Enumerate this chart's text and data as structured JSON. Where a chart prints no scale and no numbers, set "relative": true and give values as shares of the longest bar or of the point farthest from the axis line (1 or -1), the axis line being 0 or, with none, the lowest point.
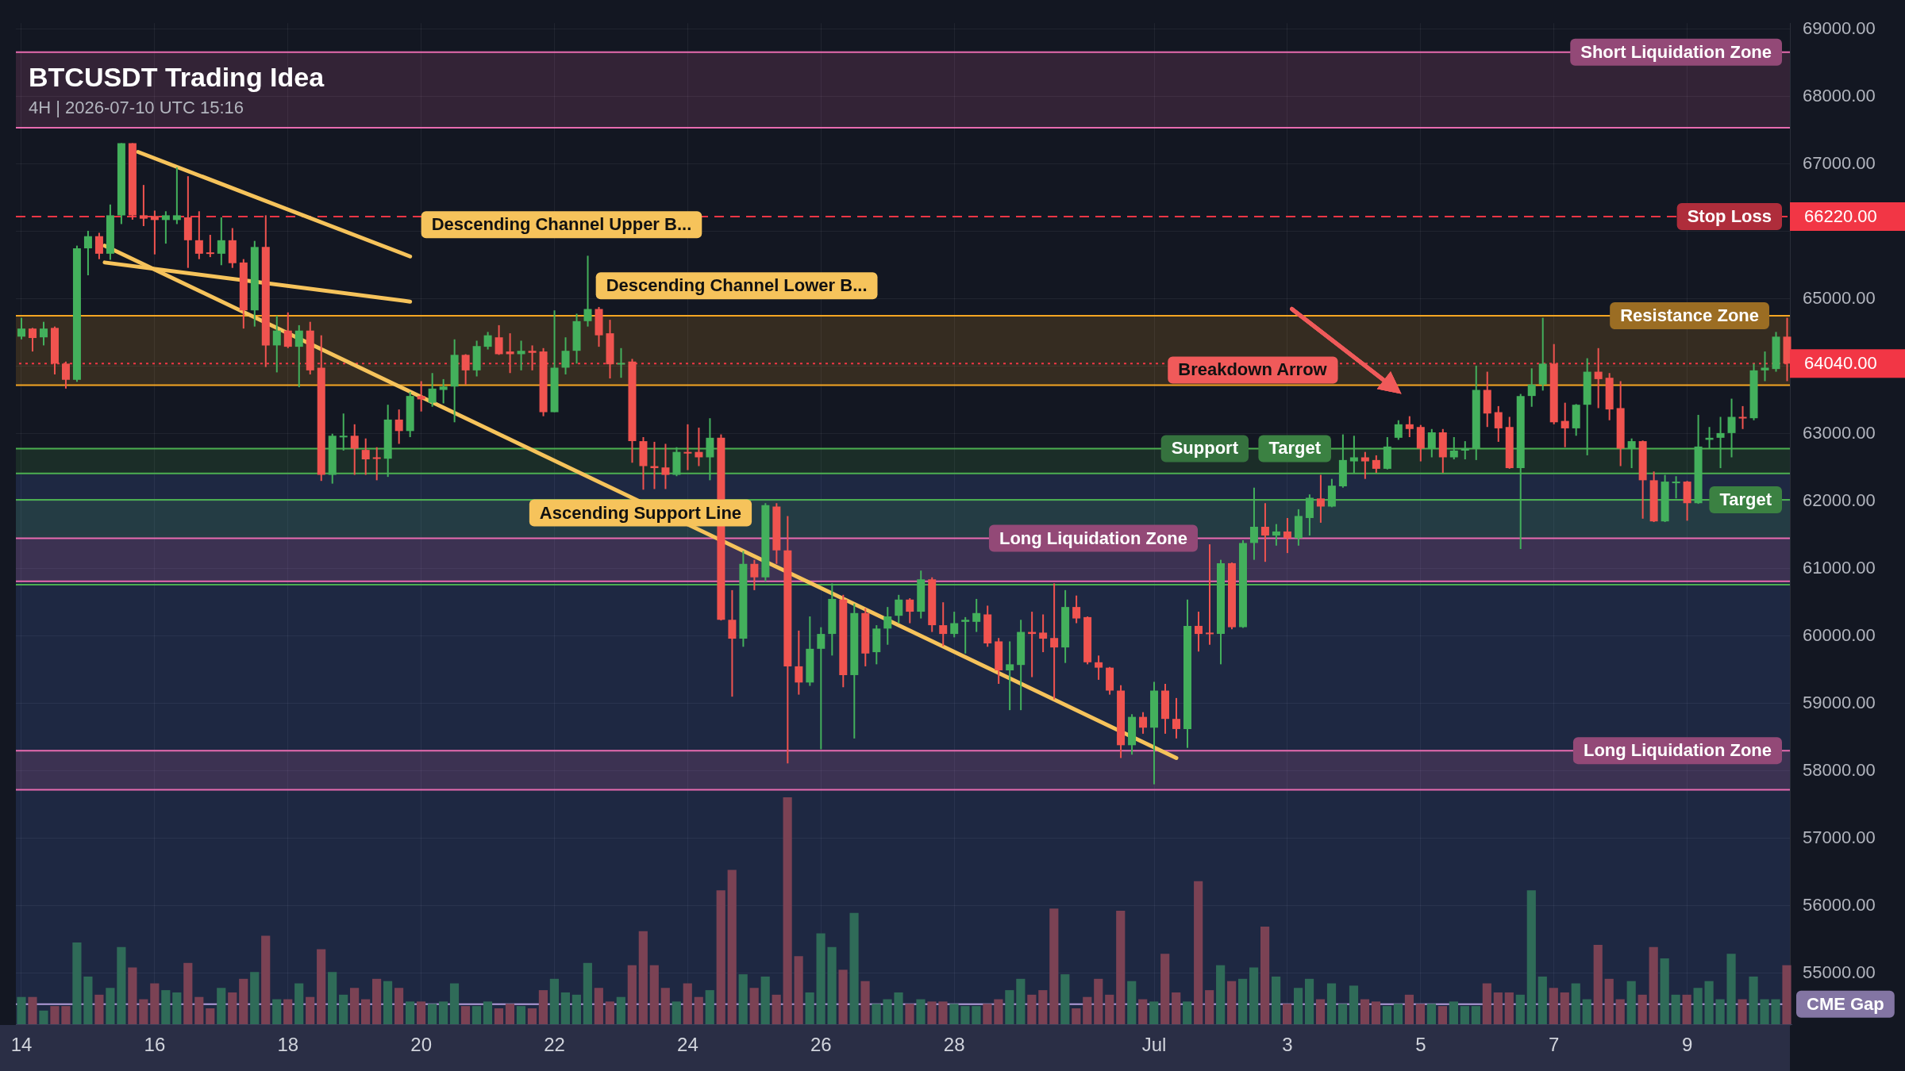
{
  "chart_data": [
    {
      "type": "candlestick",
      "title": "BTCUSDT Trading Idea",
      "subtitle": "4H | 2026-07-10 UTC 15:16",
      "x": [
        "2026-06-14T00:00",
        "2026-06-14T04:00",
        "2026-06-14T08:00",
        "2026-06-14T12:00",
        "2026-06-14T16:00",
        "2026-06-14T20:00",
        "2026-06-15T00:00",
        "2026-06-15T04:00",
        "2026-06-15T08:00",
        "2026-06-15T12:00",
        "2026-06-15T16:00",
        "2026-06-15T20:00",
        "2026-06-16T00:00",
        "2026-06-16T04:00",
        "2026-06-16T08:00",
        "2026-06-16T12:00",
        "2026-06-16T16:00",
        "2026-06-16T20:00",
        "2026-06-17T00:00",
        "2026-06-17T04:00",
        "2026-06-17T08:00",
        "2026-06-17T12:00",
        "2026-06-17T16:00",
        "2026-06-17T20:00",
        "2026-06-18T00:00",
        "2026-06-18T04:00",
        "2026-06-18T08:00",
        "2026-06-18T12:00",
        "2026-06-18T16:00",
        "2026-06-18T20:00",
        "2026-06-19T00:00",
        "2026-06-19T04:00",
        "2026-06-19T08:00",
        "2026-06-19T12:00",
        "2026-06-19T16:00",
        "2026-06-19T20:00",
        "2026-06-20T00:00",
        "2026-06-20T04:00",
        "2026-06-20T08:00",
        "2026-06-20T12:00",
        "2026-06-20T16:00",
        "2026-06-20T20:00",
        "2026-06-21T00:00",
        "2026-06-21T04:00",
        "2026-06-21T08:00",
        "2026-06-21T12:00",
        "2026-06-21T16:00",
        "2026-06-21T20:00",
        "2026-06-22T00:00",
        "2026-06-22T04:00",
        "2026-06-22T08:00",
        "2026-06-22T12:00",
        "2026-06-22T16:00",
        "2026-06-22T20:00",
        "2026-06-23T00:00",
        "2026-06-23T04:00",
        "2026-06-23T08:00",
        "2026-06-23T12:00",
        "2026-06-23T16:00",
        "2026-06-23T20:00",
        "2026-06-24T00:00",
        "2026-06-24T04:00",
        "2026-06-24T08:00",
        "2026-06-24T12:00",
        "2026-06-24T16:00",
        "2026-06-24T20:00",
        "2026-06-25T00:00",
        "2026-06-25T04:00",
        "2026-06-25T08:00",
        "2026-06-25T12:00",
        "2026-06-25T16:00",
        "2026-06-25T20:00",
        "2026-06-26T00:00",
        "2026-06-26T04:00",
        "2026-06-26T08:00",
        "2026-06-26T12:00",
        "2026-06-26T16:00",
        "2026-06-26T20:00",
        "2026-06-27T00:00",
        "2026-06-27T04:00",
        "2026-06-27T08:00",
        "2026-06-27T12:00",
        "2026-06-27T16:00",
        "2026-06-27T20:00",
        "2026-06-28T00:00",
        "2026-06-28T04:00",
        "2026-06-28T08:00",
        "2026-06-28T12:00",
        "2026-06-28T16:00",
        "2026-06-28T20:00",
        "2026-06-29T00:00",
        "2026-06-29T04:00",
        "2026-06-29T08:00",
        "2026-06-29T12:00",
        "2026-06-29T16:00",
        "2026-06-29T20:00",
        "2026-06-30T00:00",
        "2026-06-30T04:00",
        "2026-06-30T08:00",
        "2026-06-30T12:00",
        "2026-06-30T16:00",
        "2026-06-30T20:00",
        "2026-07-01T00:00",
        "2026-07-01T04:00",
        "2026-07-01T08:00",
        "2026-07-01T12:00",
        "2026-07-01T16:00",
        "2026-07-01T20:00",
        "2026-07-02T00:00",
        "2026-07-02T04:00",
        "2026-07-02T08:00",
        "2026-07-02T12:00",
        "2026-07-02T16:00",
        "2026-07-02T20:00",
        "2026-07-03T00:00",
        "2026-07-03T04:00",
        "2026-07-03T08:00",
        "2026-07-03T12:00",
        "2026-07-03T16:00",
        "2026-07-03T20:00",
        "2026-07-04T00:00",
        "2026-07-04T04:00",
        "2026-07-04T08:00",
        "2026-07-04T12:00",
        "2026-07-04T16:00",
        "2026-07-04T20:00",
        "2026-07-05T00:00",
        "2026-07-05T04:00",
        "2026-07-05T08:00",
        "2026-07-05T12:00",
        "2026-07-05T16:00",
        "2026-07-05T20:00",
        "2026-07-06T00:00",
        "2026-07-06T04:00",
        "2026-07-06T08:00",
        "2026-07-06T12:00",
        "2026-07-06T16:00",
        "2026-07-06T20:00",
        "2026-07-07T00:00",
        "2026-07-07T04:00",
        "2026-07-07T08:00",
        "2026-07-07T12:00",
        "2026-07-07T16:00",
        "2026-07-07T20:00",
        "2026-07-08T00:00",
        "2026-07-08T04:00",
        "2026-07-08T08:00",
        "2026-07-08T12:00",
        "2026-07-08T16:00",
        "2026-07-08T20:00",
        "2026-07-09T00:00",
        "2026-07-09T04:00",
        "2026-07-09T08:00",
        "2026-07-09T12:00",
        "2026-07-09T16:00",
        "2026-07-09T20:00",
        "2026-07-10T00:00",
        "2026-07-10T04:00",
        "2026-07-10T08:00",
        "2026-07-10T12:00"
      ],
      "ohlc": [
        [
          64440,
          64720,
          64400,
          64560
        ],
        [
          64560,
          64570,
          64220,
          64420
        ],
        [
          64430,
          64660,
          64310,
          64560
        ],
        [
          64570,
          64590,
          63880,
          64040
        ],
        [
          64040,
          64070,
          63670,
          63800
        ],
        [
          63800,
          65790,
          63770,
          65750
        ],
        [
          65750,
          66010,
          65350,
          65930
        ],
        [
          65930,
          65980,
          65590,
          65670
        ],
        [
          65670,
          66400,
          65580,
          66240
        ],
        [
          66240,
          67310,
          66110,
          67310
        ],
        [
          67310,
          67310,
          66175,
          66240
        ],
        [
          66240,
          66690,
          66080,
          66190
        ],
        [
          66230,
          66310,
          65660,
          66170
        ],
        [
          66170,
          66300,
          65820,
          66240
        ],
        [
          66170,
          66950,
          66110,
          66240
        ],
        [
          66210,
          66820,
          65460,
          65870
        ],
        [
          65870,
          66300,
          65590,
          65670
        ],
        [
          65690,
          65950,
          65620,
          65670
        ],
        [
          65670,
          66210,
          65500,
          65870
        ],
        [
          65870,
          66050,
          65460,
          65530
        ],
        [
          65540,
          65590,
          64560,
          64830
        ],
        [
          64830,
          65860,
          64590,
          65770
        ],
        [
          65770,
          66240,
          63990,
          64310
        ],
        [
          64310,
          64750,
          63910,
          64530
        ],
        [
          64530,
          64800,
          64270,
          64290
        ],
        [
          64290,
          64610,
          63690,
          64530
        ],
        [
          64530,
          64660,
          63880,
          63940
        ],
        [
          63980,
          64460,
          62300,
          62390
        ],
        [
          62390,
          63000,
          62260,
          62970
        ],
        [
          62950,
          63300,
          62750,
          62970
        ],
        [
          62970,
          63140,
          62390,
          62780
        ],
        [
          62760,
          62930,
          62390,
          62620
        ],
        [
          62650,
          62800,
          62310,
          62630
        ],
        [
          62630,
          63430,
          62360,
          63210
        ],
        [
          63210,
          63360,
          62850,
          63040
        ],
        [
          63040,
          63620,
          62950,
          63560
        ],
        [
          63560,
          63780,
          63330,
          63510
        ],
        [
          63460,
          63900,
          63400,
          63670
        ],
        [
          63650,
          63810,
          63450,
          63700
        ],
        [
          63700,
          64400,
          63170,
          64170
        ],
        [
          64170,
          64180,
          63730,
          63940
        ],
        [
          63940,
          64380,
          63850,
          64300
        ],
        [
          64290,
          64510,
          64250,
          64460
        ],
        [
          64430,
          64610,
          64170,
          64180
        ],
        [
          64220,
          64490,
          63900,
          64180
        ],
        [
          64180,
          64380,
          63940,
          64230
        ],
        [
          64230,
          64310,
          63940,
          64200
        ],
        [
          64220,
          64270,
          63260,
          63320
        ],
        [
          63320,
          64830,
          63320,
          63980
        ],
        [
          63980,
          64430,
          63880,
          64230
        ],
        [
          64230,
          64780,
          64040,
          64670
        ],
        [
          64670,
          65640,
          64590,
          64850
        ],
        [
          64850,
          64880,
          64290,
          64460
        ],
        [
          64490,
          64690,
          63820,
          64030
        ],
        [
          64040,
          64270,
          63830,
          64050
        ],
        [
          64070,
          64110,
          62570,
          62890
        ],
        [
          62890,
          62950,
          62170,
          62520
        ],
        [
          62520,
          62880,
          62180,
          62490
        ],
        [
          62500,
          62850,
          62180,
          62390
        ],
        [
          62390,
          62800,
          62370,
          62730
        ],
        [
          62730,
          63140,
          62460,
          62720
        ],
        [
          62730,
          63090,
          62520,
          62650
        ],
        [
          62650,
          63230,
          62310,
          62940
        ],
        [
          62940,
          62990,
          60230,
          60240
        ],
        [
          60240,
          60680,
          59100,
          59960
        ],
        [
          59960,
          61260,
          59840,
          61070
        ],
        [
          61070,
          61130,
          60680,
          60870
        ],
        [
          60870,
          61970,
          60810,
          61940
        ],
        [
          61920,
          61970,
          61070,
          61270
        ],
        [
          61270,
          61780,
          58110,
          59550
        ],
        [
          59550,
          60080,
          59130,
          59310
        ],
        [
          59310,
          60290,
          59260,
          59810
        ],
        [
          59810,
          60130,
          58320,
          60030
        ],
        [
          60030,
          60780,
          59710,
          60550
        ],
        [
          60540,
          60610,
          59240,
          59420
        ],
        [
          59420,
          60480,
          58480,
          60340
        ],
        [
          60340,
          60410,
          59550,
          59740
        ],
        [
          59760,
          60160,
          59580,
          60110
        ],
        [
          60110,
          60430,
          59870,
          60290
        ],
        [
          60300,
          60610,
          60190,
          60540
        ],
        [
          60540,
          60560,
          60190,
          60360
        ],
        [
          60360,
          60970,
          60260,
          60840
        ],
        [
          60840,
          60870,
          60060,
          60160
        ],
        [
          60160,
          60500,
          59850,
          60030
        ],
        [
          60030,
          60360,
          59980,
          60190
        ],
        [
          60210,
          60280,
          59740,
          60240
        ],
        [
          60210,
          60550,
          60060,
          60340
        ],
        [
          60320,
          60450,
          59840,
          59890
        ],
        [
          59920,
          59970,
          59290,
          59490
        ],
        [
          59490,
          59920,
          58900,
          59580
        ],
        [
          59570,
          60240,
          58900,
          60060
        ],
        [
          60060,
          60360,
          59390,
          60030
        ],
        [
          60050,
          60320,
          59760,
          59960
        ],
        [
          59970,
          60780,
          59060,
          59830
        ],
        [
          59830,
          60680,
          59600,
          60430
        ],
        [
          60430,
          60600,
          60190,
          60260
        ],
        [
          60280,
          60290,
          59580,
          59610
        ],
        [
          59610,
          59710,
          59350,
          59530
        ],
        [
          59530,
          59540,
          59130,
          59190
        ],
        [
          59190,
          59270,
          58190,
          58380
        ],
        [
          58380,
          58840,
          58240,
          58800
        ],
        [
          58800,
          58870,
          58550,
          58640
        ],
        [
          58640,
          59320,
          57800,
          59190
        ],
        [
          59190,
          59290,
          58550,
          58770
        ],
        [
          58770,
          59080,
          58480,
          58620
        ],
        [
          58620,
          60540,
          58340,
          60150
        ],
        [
          60150,
          60360,
          59770,
          60030
        ],
        [
          60050,
          61360,
          59870,
          60030
        ],
        [
          60030,
          61130,
          59580,
          61080
        ],
        [
          61080,
          61090,
          60100,
          60130
        ],
        [
          60130,
          61420,
          60120,
          61380
        ],
        [
          61380,
          62200,
          61130,
          61620
        ],
        [
          61620,
          61970,
          61100,
          61490
        ],
        [
          61490,
          61660,
          61340,
          61550
        ],
        [
          61550,
          61750,
          61230,
          61450
        ],
        [
          61450,
          61880,
          61340,
          61780
        ],
        [
          61750,
          62100,
          61490,
          62050
        ],
        [
          62040,
          62390,
          61680,
          61920
        ],
        [
          61920,
          62330,
          61910,
          62230
        ],
        [
          62220,
          62990,
          62200,
          62610
        ],
        [
          62590,
          62970,
          62420,
          62650
        ],
        [
          62650,
          62730,
          62330,
          62590
        ],
        [
          62610,
          62680,
          62420,
          62480
        ],
        [
          62480,
          62950,
          62470,
          62810
        ],
        [
          62940,
          63200,
          62910,
          63140
        ],
        [
          63140,
          63260,
          62950,
          63070
        ],
        [
          63100,
          63130,
          62590,
          62780
        ],
        [
          62780,
          63070,
          62650,
          63020
        ],
        [
          63020,
          63070,
          62420,
          62650
        ],
        [
          62650,
          62950,
          62620,
          62750
        ],
        [
          62750,
          62890,
          62620,
          62780
        ],
        [
          62780,
          64010,
          62610,
          63650
        ],
        [
          63650,
          63920,
          63100,
          63300
        ],
        [
          63320,
          63410,
          62880,
          63080
        ],
        [
          63100,
          63250,
          62480,
          62490
        ],
        [
          62490,
          63590,
          61290,
          63560
        ],
        [
          63560,
          63970,
          63400,
          63730
        ],
        [
          63730,
          64720,
          63640,
          64040
        ],
        [
          64040,
          64330,
          63140,
          63170
        ],
        [
          63190,
          63460,
          62800,
          63080
        ],
        [
          63080,
          63440,
          62970,
          63430
        ],
        [
          63430,
          64120,
          62680,
          63920
        ],
        [
          63920,
          64270,
          63380,
          63810
        ],
        [
          63830,
          63900,
          63200,
          63360
        ],
        [
          63380,
          63780,
          62520,
          62780
        ],
        [
          62780,
          62930,
          62490,
          62890
        ],
        [
          62890,
          62900,
          61740,
          62310
        ],
        [
          62310,
          62440,
          61690,
          61700
        ],
        [
          61700,
          62390,
          61690,
          62290
        ],
        [
          62280,
          62370,
          62040,
          62290
        ],
        [
          62290,
          62300,
          61710,
          61970
        ],
        [
          61970,
          63280,
          61960,
          62810
        ],
        [
          62910,
          63100,
          62780,
          62940
        ],
        [
          62940,
          63250,
          62490,
          63010
        ],
        [
          63010,
          63520,
          62650,
          63250
        ],
        [
          63250,
          63410,
          63070,
          63230
        ],
        [
          63230,
          64040,
          63200,
          63940
        ],
        [
          63940,
          64220,
          63780,
          63980
        ],
        [
          63960,
          64510,
          63920,
          64440
        ],
        [
          64440,
          64720,
          63780,
          64040
        ]
      ],
      "colors": [
        "#43b05c",
        "#f0534f",
        "#43b05c",
        "#f0534f",
        "#f0534f",
        "#43b05c",
        "#43b05c",
        "#f0534f",
        "#43b05c",
        "#43b05c",
        "#f0534f",
        "#f0534f",
        "#f0534f",
        "#43b05c",
        "#43b05c",
        "#f0534f",
        "#f0534f",
        "#f0534f",
        "#43b05c",
        "#f0534f",
        "#f0534f",
        "#43b05c",
        "#f0534f",
        "#43b05c",
        "#f0534f",
        "#43b05c",
        "#f0534f",
        "#f0534f",
        "#43b05c",
        "#43b05c",
        "#f0534f",
        "#f0534f",
        "#f0534f",
        "#43b05c",
        "#f0534f",
        "#43b05c",
        "#f0534f",
        "#43b05c",
        "#43b05c",
        "#43b05c",
        "#f0534f",
        "#43b05c",
        "#43b05c",
        "#f0534f",
        "#f0534f",
        "#43b05c",
        "#f0534f",
        "#f0534f",
        "#43b05c",
        "#43b05c",
        "#43b05c",
        "#43b05c",
        "#f0534f",
        "#f0534f",
        "#43b05c",
        "#f0534f",
        "#f0534f",
        "#f0534f",
        "#f0534f",
        "#43b05c",
        "#f0534f",
        "#f0534f",
        "#43b05c",
        "#f0534f",
        "#f0534f",
        "#43b05c",
        "#f0534f",
        "#43b05c",
        "#f0534f",
        "#f0534f",
        "#f0534f",
        "#43b05c",
        "#43b05c",
        "#43b05c",
        "#f0534f",
        "#43b05c",
        "#f0534f",
        "#43b05c",
        "#43b05c",
        "#43b05c",
        "#f0534f",
        "#43b05c",
        "#f0534f",
        "#f0534f",
        "#43b05c",
        "#43b05c",
        "#43b05c",
        "#f0534f",
        "#f0534f",
        "#43b05c",
        "#43b05c",
        "#f0534f",
        "#f0534f",
        "#f0534f",
        "#43b05c",
        "#f0534f",
        "#f0534f",
        "#f0534f",
        "#f0534f",
        "#f0534f",
        "#43b05c",
        "#f0534f",
        "#43b05c",
        "#f0534f",
        "#f0534f",
        "#43b05c",
        "#f0534f",
        "#f0534f",
        "#43b05c",
        "#f0534f",
        "#43b05c",
        "#43b05c",
        "#f0534f",
        "#43b05c",
        "#f0534f",
        "#43b05c",
        "#43b05c",
        "#f0534f",
        "#43b05c",
        "#43b05c",
        "#43b05c",
        "#f0534f",
        "#f0534f",
        "#43b05c",
        "#43b05c",
        "#f0534f",
        "#f0534f",
        "#43b05c",
        "#f0534f",
        "#43b05c",
        "#43b05c",
        "#43b05c",
        "#f0534f",
        "#f0534f",
        "#f0534f",
        "#43b05c",
        "#43b05c",
        "#43b05c",
        "#f0534f",
        "#f0534f",
        "#43b05c",
        "#43b05c",
        "#f0534f",
        "#f0534f",
        "#f0534f",
        "#43b05c",
        "#f0534f",
        "#f0534f",
        "#43b05c",
        "#43b05c",
        "#f0534f",
        "#43b05c",
        "#43b05c",
        "#43b05c",
        "#43b05c",
        "#f0534f",
        "#43b05c",
        "#43b05c",
        "#43b05c",
        "#f0534f"
      ],
      "series": [
        {
          "name": "Descending Channel Upper B...",
          "type": "line",
          "color": "#f6c35b",
          "x": [
            "2026-06-15T18:00",
            "2026-06-19T20:00"
          ],
          "values": [
            67180,
            65630
          ]
        },
        {
          "name": "Descending Channel Lower B...",
          "type": "line",
          "color": "#f6c35b",
          "x": [
            "2026-06-15T06:00",
            "2026-06-19T20:00"
          ],
          "values": [
            65540,
            64960
          ]
        },
        {
          "name": "Ascending Support Line",
          "type": "line",
          "color": "#f6c35b",
          "x": [
            "2026-06-15T06:00",
            "2026-07-01T08:00"
          ],
          "values": [
            65790,
            58190
          ]
        }
      ],
      "bands": [
        {
          "axis": "y",
          "from": 54230,
          "to": 62410,
          "color": "#5c8fff"
        },
        {
          "axis": "y",
          "from": 61450,
          "to": 62020,
          "color": "#4caf50"
        },
        {
          "axis": "y",
          "from": 62410,
          "to": 62780,
          "label": "Support",
          "color": "#4caf50"
        },
        {
          "axis": "y",
          "from": 63720,
          "to": 64750,
          "label": "Resistance Zone",
          "color": "#f5a623"
        },
        {
          "axis": "y",
          "from": 67540,
          "to": 68660,
          "label": "Short Liquidation Zone",
          "color": "#e86bb0"
        },
        {
          "axis": "y",
          "from": 60810,
          "to": 61450,
          "label": "Long Liquidation Zone",
          "color": "#e86bb0"
        },
        {
          "axis": "y",
          "from": 57720,
          "to": 58300,
          "label": "Long Liquidation Zone",
          "color": "#e86bb0"
        }
      ],
      "ref_lines": [
        {
          "axis": "y",
          "value": 66220,
          "label": "Stop Loss",
          "color": "#f23645",
          "line_style": "dashed"
        },
        {
          "axis": "y",
          "value": 64040,
          "color": "#f23645",
          "line_style": "dotted"
        },
        {
          "axis": "y",
          "value": 62780,
          "label": "Target",
          "color": "#4caf50"
        },
        {
          "axis": "y",
          "value": 62410,
          "color": "#4caf50"
        },
        {
          "axis": "y",
          "value": 62020,
          "label": "Target",
          "color": "#4caf50"
        },
        {
          "axis": "y",
          "value": 60760,
          "color": "#4caf50"
        },
        {
          "axis": "y",
          "value": 54540,
          "label": "CME Gap",
          "color": "#b39ddb"
        },
        {
          "axis": "y",
          "value": 68660,
          "color": "#e86bb0"
        },
        {
          "axis": "y",
          "value": 67540,
          "color": "#e86bb0"
        },
        {
          "axis": "y",
          "value": 64750,
          "color": "#f5a623"
        },
        {
          "axis": "y",
          "value": 63720,
          "color": "#f5a623"
        },
        {
          "axis": "y",
          "value": 61450,
          "color": "#e86bb0"
        },
        {
          "axis": "y",
          "value": 60810,
          "color": "#e86bb0"
        },
        {
          "axis": "y",
          "value": 58300,
          "color": "#e86bb0"
        },
        {
          "axis": "y",
          "value": 57720,
          "color": "#e86bb0"
        }
      ],
      "annotations": [
        "Breakdown Arrow",
        "66220.00",
        "64040.00"
      ],
      "xlim": [
        "2026-06-13T22:00",
        "2026-07-10T13:00"
      ],
      "xticks": [
        {
          "value": "2026-06-14",
          "label": "14"
        },
        {
          "value": "2026-06-16",
          "label": "16"
        },
        {
          "value": "2026-06-18",
          "label": "18"
        },
        {
          "value": "2026-06-20",
          "label": "20"
        },
        {
          "value": "2026-06-22",
          "label": "22"
        },
        {
          "value": "2026-06-24",
          "label": "24"
        },
        {
          "value": "2026-06-26",
          "label": "26"
        },
        {
          "value": "2026-06-28",
          "label": "28"
        },
        {
          "value": "2026-07-01",
          "label": "Jul"
        },
        {
          "value": "2026-07-03",
          "label": "3"
        },
        {
          "value": "2026-07-05",
          "label": "5"
        },
        {
          "value": "2026-07-07",
          "label": "7"
        },
        {
          "value": "2026-07-09",
          "label": "9"
        }
      ],
      "ylim": [
        54230,
        69090
      ],
      "yticks": [
        {
          "value": 55000,
          "label": "55000.00"
        },
        {
          "value": 56000,
          "label": "56000.00"
        },
        {
          "value": 57000,
          "label": "57000.00"
        },
        {
          "value": 58000,
          "label": "58000.00"
        },
        {
          "value": 59000,
          "label": "59000.00"
        },
        {
          "value": 60000,
          "label": "60000.00"
        },
        {
          "value": 61000,
          "label": "61000.00"
        },
        {
          "value": 62000,
          "label": "62000.00"
        },
        {
          "value": 63000,
          "label": "63000.00"
        },
        {
          "value": 64000,
          "label": null
        },
        {
          "value": 65000,
          "label": "65000.00"
        },
        {
          "value": 66000,
          "label": null
        },
        {
          "value": 67000,
          "label": "67000.00"
        },
        {
          "value": 68000,
          "label": "68000.00"
        },
        {
          "value": 69000,
          "label": "69000.00"
        }
      ],
      "grid": true
    },
    {
      "type": "bar",
      "relative": true,
      "categories": [
        null,
        null,
        null,
        null,
        null,
        null,
        null,
        null,
        null,
        null,
        null,
        null,
        null,
        null,
        null,
        null,
        null,
        null,
        null,
        null,
        null,
        null,
        null,
        null,
        null,
        null,
        null,
        null,
        null,
        null,
        null,
        null,
        null,
        null,
        null,
        null,
        null,
        null,
        null,
        null,
        null,
        null,
        null,
        null,
        null,
        null,
        null,
        null,
        null,
        null,
        null,
        null,
        null,
        null,
        null,
        null,
        null,
        null,
        null,
        null,
        null,
        null,
        null,
        null,
        null,
        null,
        null,
        null,
        null,
        null,
        null,
        null,
        null,
        null,
        null,
        null,
        null,
        null,
        null,
        null,
        null,
        null,
        null,
        null,
        null,
        null,
        null,
        null,
        null,
        null,
        null,
        null,
        null,
        null,
        null,
        null,
        null,
        null,
        null,
        null,
        null,
        null,
        null,
        null,
        null,
        null,
        null,
        null,
        null,
        null,
        null,
        null,
        null,
        null,
        null,
        null,
        null,
        null,
        null,
        null,
        null,
        null,
        null,
        null,
        null,
        null,
        null,
        null,
        null,
        null,
        null,
        null,
        null,
        null,
        null,
        null,
        null,
        null,
        null,
        null,
        null,
        null,
        null,
        null,
        null,
        null,
        null,
        null,
        null,
        null,
        null,
        null,
        null,
        null,
        null,
        null,
        null,
        null,
        null,
        null
      ],
      "values": [
        0.12,
        0.12,
        0.06,
        0.08,
        0.08,
        0.36,
        0.21,
        0.13,
        0.16,
        0.34,
        0.25,
        0.11,
        0.18,
        0.15,
        0.14,
        0.27,
        0.12,
        0.07,
        0.16,
        0.14,
        0.2,
        0.23,
        0.39,
        0.11,
        0.11,
        0.18,
        0.12,
        0.33,
        0.23,
        0.13,
        0.16,
        0.11,
        0.2,
        0.19,
        0.16,
        0.1,
        0.1,
        0.09,
        0.1,
        0.18,
        0.08,
        0.08,
        0.1,
        0.07,
        0.09,
        0.08,
        0.07,
        0.15,
        0.2,
        0.14,
        0.13,
        0.27,
        0.16,
        0.1,
        0.12,
        0.26,
        0.41,
        0.26,
        0.16,
        0.1,
        0.18,
        0.12,
        0.15,
        0.59,
        0.68,
        0.22,
        0.16,
        0.21,
        0.13,
        1,
        0.3,
        0.14,
        0.4,
        0.34,
        0.24,
        0.49,
        0.19,
        0.09,
        0.11,
        0.14,
        0.09,
        0.11,
        0.1,
        0.1,
        0.09,
        0.08,
        0.08,
        0.09,
        0.11,
        0.15,
        0.2,
        0.13,
        0.15,
        0.51,
        0.22,
        0.07,
        0.12,
        0.2,
        0.13,
        0.5,
        0.19,
        0.11,
        0.1,
        0.31,
        0.14,
        0.1,
        0.63,
        0.15,
        0.26,
        0.19,
        0.2,
        0.25,
        0.43,
        0.21,
        0.09,
        0.16,
        0.2,
        0.11,
        0.18,
        0.09,
        0.17,
        0.11,
        0.1,
        0.08,
        0.09,
        0.13,
        0.09,
        0.09,
        0.08,
        0.1,
        0.08,
        0.08,
        0.18,
        0.14,
        0.14,
        0.13,
        0.59,
        0.21,
        0.16,
        0.14,
        0.18,
        0.11,
        0.35,
        0.2,
        0.11,
        0.19,
        0.13,
        0.34,
        0.29,
        0.13,
        0.13,
        0.16,
        0.19,
        0.11,
        0.31,
        0.11,
        0.21,
        0.11,
        0.11,
        0.26
      ],
      "colors": [
        "#2f6b58",
        "#7b4254",
        "#2f6b58",
        "#7b4254",
        "#7b4254",
        "#2f6b58",
        "#2f6b58",
        "#7b4254",
        "#2f6b58",
        "#2f6b58",
        "#7b4254",
        "#7b4254",
        "#7b4254",
        "#2f6b58",
        "#2f6b58",
        "#7b4254",
        "#7b4254",
        "#7b4254",
        "#2f6b58",
        "#7b4254",
        "#7b4254",
        "#2f6b58",
        "#7b4254",
        "#2f6b58",
        "#7b4254",
        "#2f6b58",
        "#7b4254",
        "#7b4254",
        "#2f6b58",
        "#2f6b58",
        "#7b4254",
        "#7b4254",
        "#7b4254",
        "#2f6b58",
        "#7b4254",
        "#2f6b58",
        "#7b4254",
        "#2f6b58",
        "#2f6b58",
        "#2f6b58",
        "#7b4254",
        "#2f6b58",
        "#2f6b58",
        "#7b4254",
        "#7b4254",
        "#2f6b58",
        "#7b4254",
        "#7b4254",
        "#2f6b58",
        "#2f6b58",
        "#2f6b58",
        "#2f6b58",
        "#7b4254",
        "#7b4254",
        "#2f6b58",
        "#7b4254",
        "#7b4254",
        "#7b4254",
        "#7b4254",
        "#2f6b58",
        "#7b4254",
        "#7b4254",
        "#2f6b58",
        "#7b4254",
        "#7b4254",
        "#2f6b58",
        "#7b4254",
        "#2f6b58",
        "#7b4254",
        "#7b4254",
        "#7b4254",
        "#2f6b58",
        "#2f6b58",
        "#2f6b58",
        "#7b4254",
        "#2f6b58",
        "#7b4254",
        "#2f6b58",
        "#2f6b58",
        "#2f6b58",
        "#7b4254",
        "#2f6b58",
        "#7b4254",
        "#7b4254",
        "#2f6b58",
        "#2f6b58",
        "#2f6b58",
        "#7b4254",
        "#7b4254",
        "#2f6b58",
        "#2f6b58",
        "#7b4254",
        "#7b4254",
        "#7b4254",
        "#2f6b58",
        "#7b4254",
        "#7b4254",
        "#7b4254",
        "#7b4254",
        "#7b4254",
        "#2f6b58",
        "#7b4254",
        "#2f6b58",
        "#7b4254",
        "#7b4254",
        "#2f6b58",
        "#7b4254",
        "#7b4254",
        "#2f6b58",
        "#7b4254",
        "#2f6b58",
        "#2f6b58",
        "#7b4254",
        "#2f6b58",
        "#7b4254",
        "#2f6b58",
        "#2f6b58",
        "#7b4254",
        "#2f6b58",
        "#2f6b58",
        "#2f6b58",
        "#7b4254",
        "#7b4254",
        "#2f6b58",
        "#2f6b58",
        "#7b4254",
        "#7b4254",
        "#2f6b58",
        "#7b4254",
        "#2f6b58",
        "#2f6b58",
        "#2f6b58",
        "#7b4254",
        "#7b4254",
        "#7b4254",
        "#2f6b58",
        "#2f6b58",
        "#2f6b58",
        "#7b4254",
        "#7b4254",
        "#2f6b58",
        "#2f6b58",
        "#7b4254",
        "#7b4254",
        "#7b4254",
        "#2f6b58",
        "#7b4254",
        "#7b4254",
        "#2f6b58",
        "#2f6b58",
        "#7b4254",
        "#2f6b58",
        "#2f6b58",
        "#2f6b58",
        "#2f6b58",
        "#7b4254",
        "#2f6b58",
        "#2f6b58",
        "#2f6b58",
        "#7b4254"
      ]
    }
  ]
}
